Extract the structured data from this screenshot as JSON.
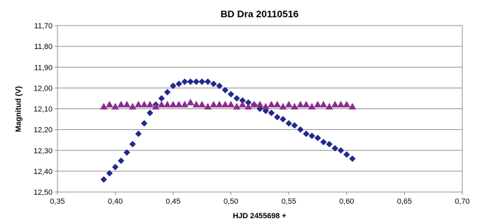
{
  "chart_data": {
    "type": "scatter",
    "title": "BD Dra 20110516",
    "xlabel": "HJD 2455698 +",
    "ylabel": "Magnitud (V)",
    "xlim": [
      0.35,
      0.7
    ],
    "ylim": [
      11.7,
      12.5
    ],
    "y_inverted": true,
    "grid": true,
    "legend": "none",
    "x_ticks": [
      "0,35",
      "0,40",
      "0,45",
      "0,50",
      "0,55",
      "0,60",
      "0,65",
      "0,70"
    ],
    "y_ticks": [
      "11,70",
      "11,80",
      "11,90",
      "12,00",
      "12,10",
      "12,20",
      "12,30",
      "12,40",
      "12,50"
    ],
    "series": [
      {
        "color": "#1f2a8c",
        "marker": "diamond",
        "x": [
          0.39,
          0.395,
          0.4,
          0.405,
          0.41,
          0.415,
          0.42,
          0.425,
          0.43,
          0.435,
          0.44,
          0.445,
          0.45,
          0.455,
          0.46,
          0.465,
          0.47,
          0.475,
          0.48,
          0.485,
          0.49,
          0.495,
          0.5,
          0.505,
          0.51,
          0.515,
          0.52,
          0.525,
          0.53,
          0.535,
          0.54,
          0.545,
          0.55,
          0.555,
          0.56,
          0.565,
          0.57,
          0.575,
          0.58,
          0.585,
          0.59,
          0.595,
          0.6,
          0.605
        ],
        "y": [
          12.44,
          12.41,
          12.38,
          12.35,
          12.31,
          12.27,
          12.22,
          12.17,
          12.12,
          12.08,
          12.05,
          12.02,
          11.99,
          11.98,
          11.97,
          11.97,
          11.97,
          11.97,
          11.97,
          11.98,
          11.99,
          12.01,
          12.03,
          12.05,
          12.06,
          12.07,
          12.08,
          12.1,
          12.11,
          12.12,
          12.14,
          12.15,
          12.17,
          12.18,
          12.2,
          12.22,
          12.23,
          12.24,
          12.26,
          12.27,
          12.29,
          12.3,
          12.32,
          12.34
        ]
      },
      {
        "color": "#8b2c8b",
        "marker": "triangle",
        "x": [
          0.39,
          0.395,
          0.4,
          0.405,
          0.41,
          0.415,
          0.42,
          0.425,
          0.43,
          0.435,
          0.44,
          0.445,
          0.45,
          0.455,
          0.46,
          0.465,
          0.47,
          0.475,
          0.48,
          0.485,
          0.49,
          0.495,
          0.5,
          0.505,
          0.51,
          0.515,
          0.52,
          0.525,
          0.53,
          0.535,
          0.54,
          0.545,
          0.55,
          0.555,
          0.56,
          0.565,
          0.57,
          0.575,
          0.58,
          0.585,
          0.59,
          0.595,
          0.6,
          0.605
        ],
        "y": [
          12.09,
          12.08,
          12.09,
          12.08,
          12.08,
          12.09,
          12.08,
          12.08,
          12.08,
          12.09,
          12.08,
          12.08,
          12.08,
          12.08,
          12.08,
          12.07,
          12.08,
          12.08,
          12.09,
          12.08,
          12.08,
          12.08,
          12.08,
          12.09,
          12.08,
          12.09,
          12.08,
          12.08,
          12.09,
          12.08,
          12.08,
          12.09,
          12.08,
          12.09,
          12.08,
          12.08,
          12.09,
          12.08,
          12.08,
          12.09,
          12.08,
          12.08,
          12.08,
          12.09
        ]
      }
    ]
  }
}
